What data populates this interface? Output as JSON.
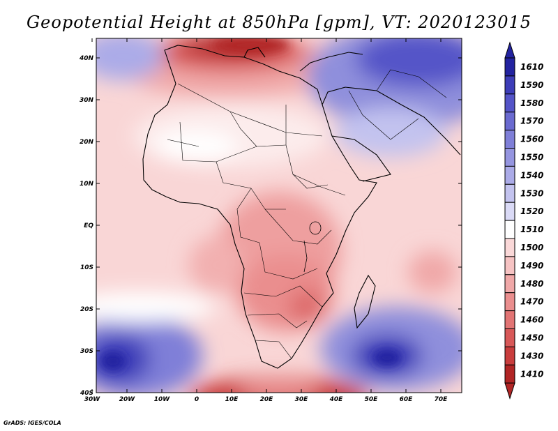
{
  "title": "Geopotential Height at 850hPa [gpm], VT: 2020123015",
  "credit": "GrADS: IGES/COLA",
  "map": {
    "variable": "Geopotential Height",
    "level": "850hPa",
    "units": "gpm",
    "valid_time": "2020123015",
    "region": "Africa and Middle East",
    "lat_ticks": [
      "40N",
      "30N",
      "20N",
      "10N",
      "EQ",
      "10S",
      "20S",
      "30S",
      "40S"
    ],
    "lon_ticks": [
      "30W",
      "20W",
      "10W",
      "0",
      "10E",
      "20E",
      "30E",
      "40E",
      "50E",
      "60E",
      "70E"
    ]
  },
  "colorbar": {
    "levels": [
      "1610",
      "1590",
      "1580",
      "1570",
      "1560",
      "1550",
      "1540",
      "1530",
      "1520",
      "1510",
      "1500",
      "1490",
      "1480",
      "1470",
      "1460",
      "1450",
      "1430",
      "1410"
    ],
    "colors": [
      "#2323a0",
      "#3d3db8",
      "#5454c8",
      "#6a6ad0",
      "#7f7fd8",
      "#9595e0",
      "#ababe8",
      "#c3c3ef",
      "#dadaf6",
      "#ffffff",
      "#fad8d8",
      "#f6c3c3",
      "#f0a8a8",
      "#ea8e8e",
      "#e27474",
      "#d85858",
      "#c93d3d",
      "#b12525"
    ]
  }
}
